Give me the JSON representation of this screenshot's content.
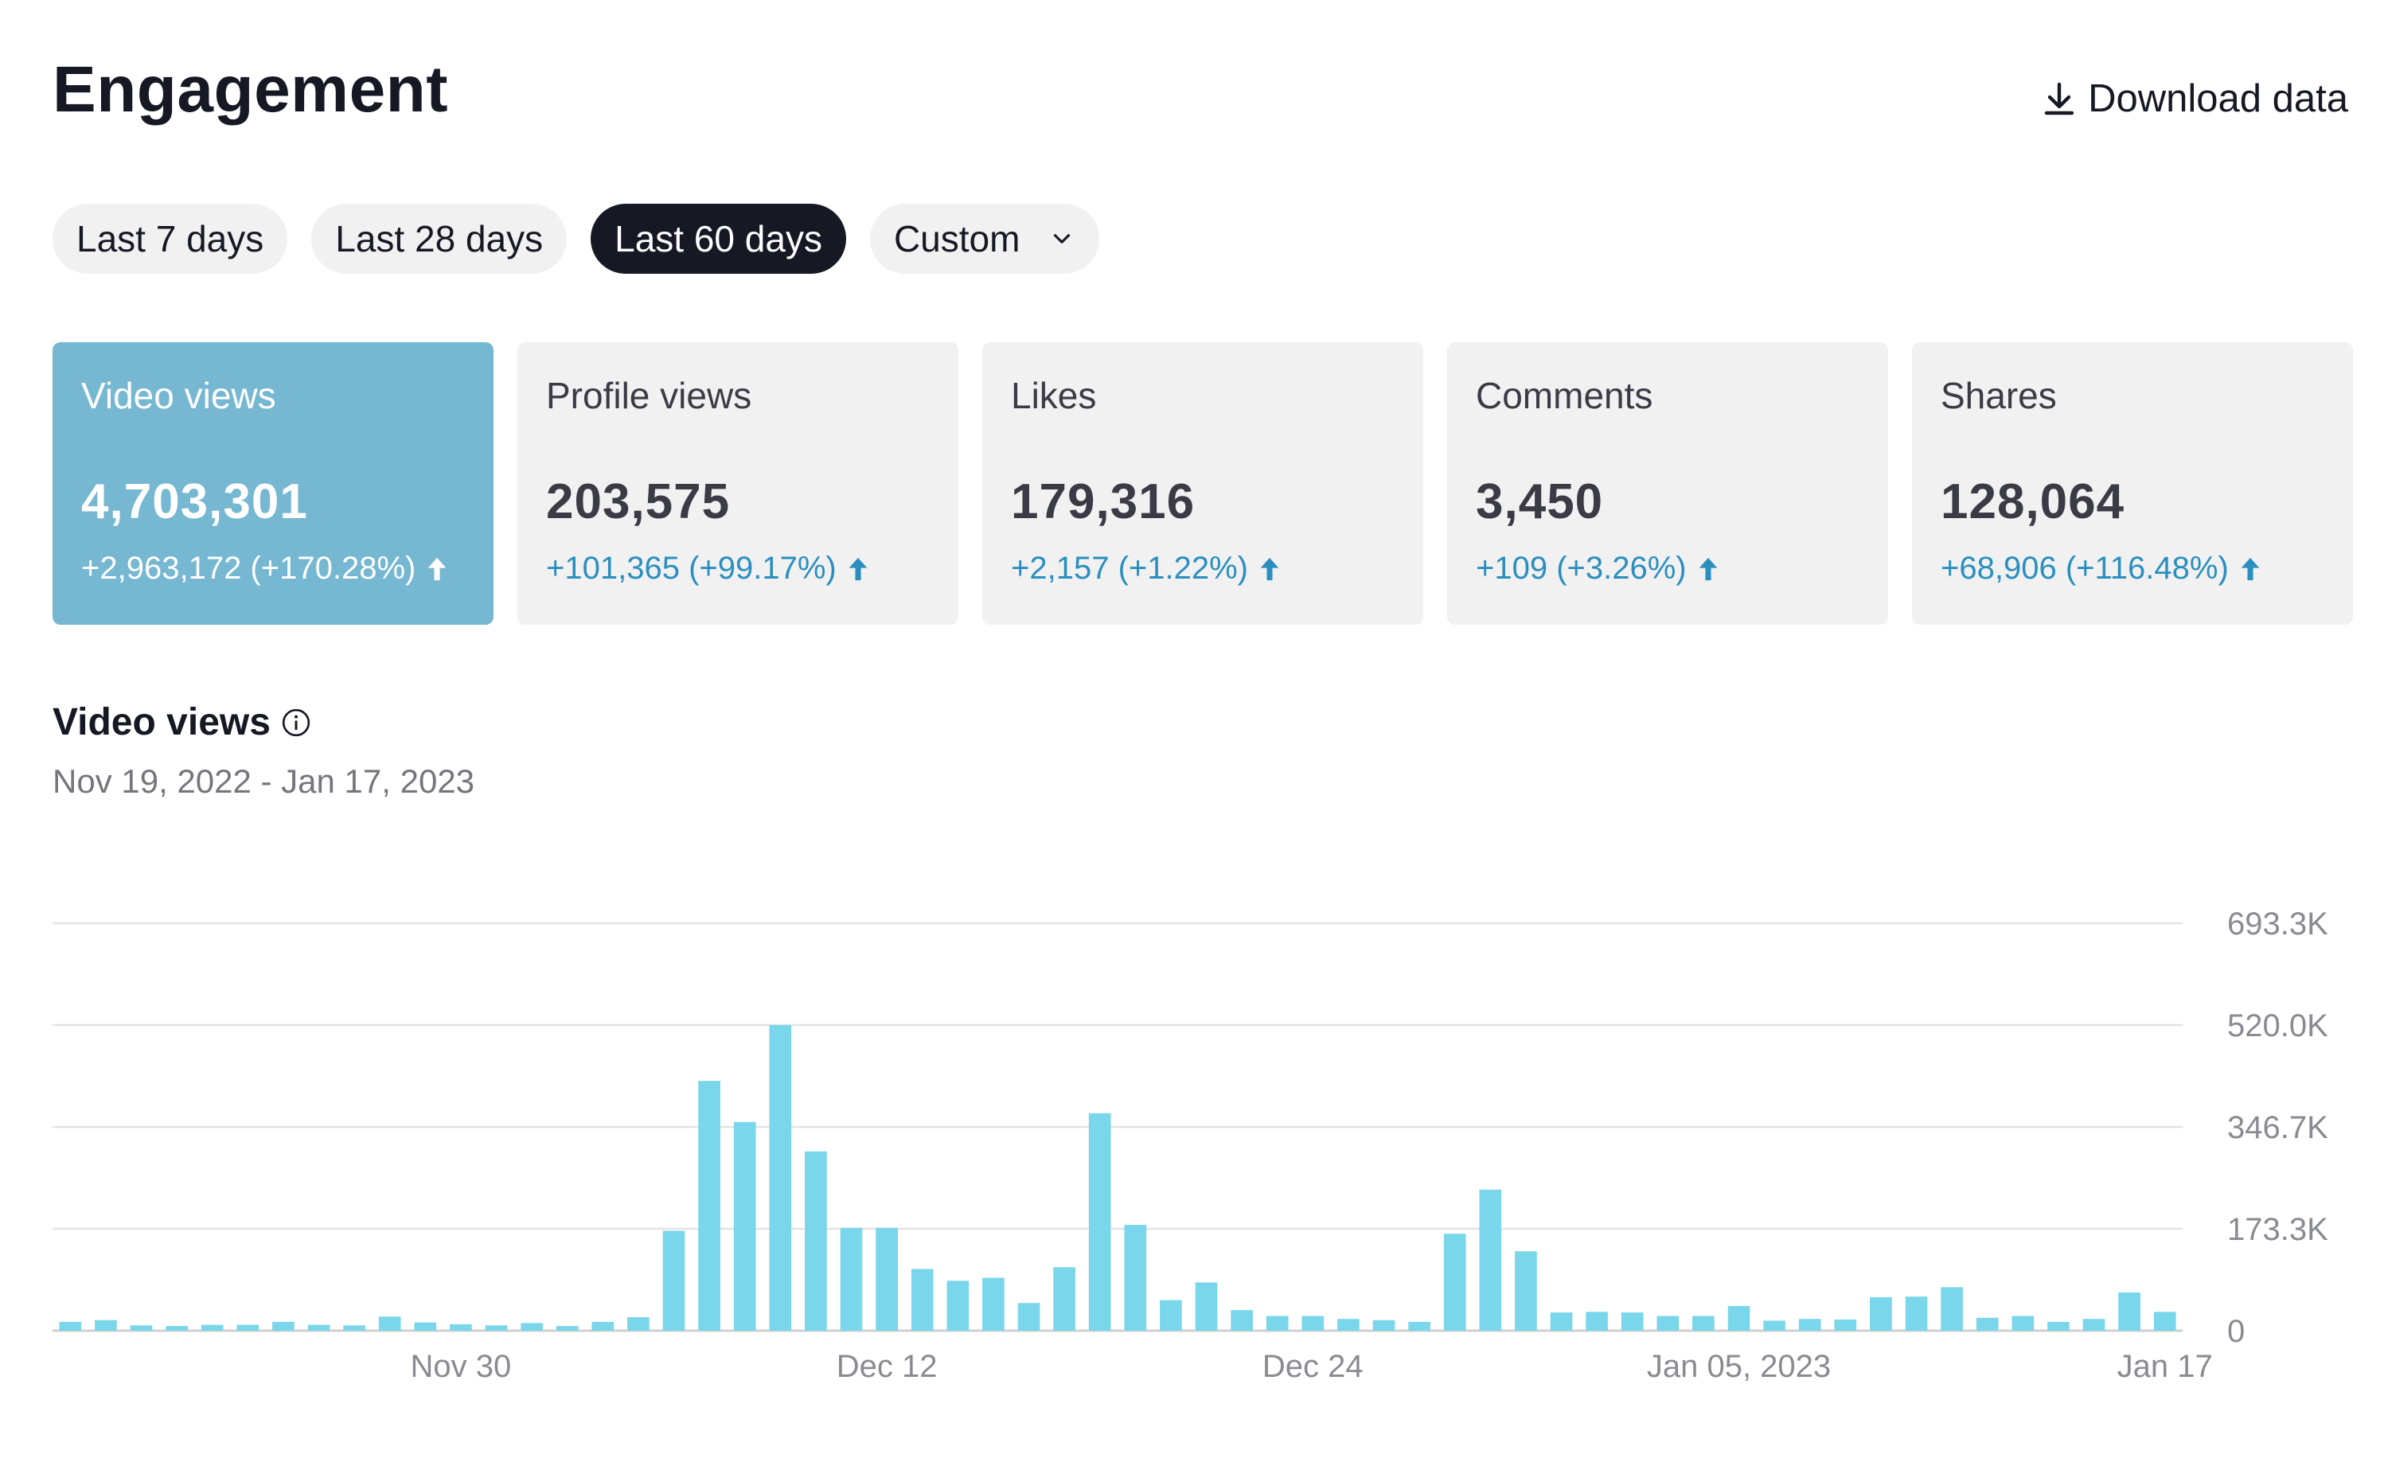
{
  "header": {
    "title": "Engagement",
    "download_label": "Download data"
  },
  "range_tabs": [
    {
      "label": "Last 7 days",
      "active": false
    },
    {
      "label": "Last 28 days",
      "active": false
    },
    {
      "label": "Last 60 days",
      "active": true
    },
    {
      "label": "Custom",
      "active": false
    }
  ],
  "metrics": [
    {
      "label": "Video views",
      "value": "4,703,301",
      "change": "+2,963,172 (+170.28%)",
      "active": true
    },
    {
      "label": "Profile views",
      "value": "203,575",
      "change": "+101,365 (+99.17%)",
      "active": false
    },
    {
      "label": "Likes",
      "value": "179,316",
      "change": "+2,157 (+1.22%)",
      "active": false
    },
    {
      "label": "Comments",
      "value": "3,450",
      "change": "+109 (+3.26%)",
      "active": false
    },
    {
      "label": "Shares",
      "value": "128,064",
      "change": "+68,906 (+116.48%)",
      "active": false
    }
  ],
  "chart_section": {
    "title": "Video views",
    "date_range": "Nov 19, 2022 - Jan 17, 2023"
  },
  "colors": {
    "bar": "#7ad6ea",
    "active_card": "#76b7d1",
    "accent_text": "#2a8fbf",
    "dark": "#161823"
  },
  "chart_data": {
    "type": "bar",
    "title": "Video views",
    "xlabel": "",
    "ylabel": "",
    "ylim": [
      0,
      693300
    ],
    "y_ticks": [
      0,
      173300,
      346700,
      520000,
      693300
    ],
    "y_tick_labels": [
      "0",
      "173.3K",
      "346.7K",
      "520.0K",
      "693.3K"
    ],
    "x_tick_labels": [
      {
        "index": 11,
        "label": "Nov 30"
      },
      {
        "index": 23,
        "label": "Dec 12"
      },
      {
        "index": 35,
        "label": "Dec 24"
      },
      {
        "index": 47,
        "label": "Jan 05, 2023"
      },
      {
        "index": 59,
        "label": "Jan 17"
      }
    ],
    "categories": [
      "Nov 19",
      "Nov 20",
      "Nov 21",
      "Nov 22",
      "Nov 23",
      "Nov 24",
      "Nov 25",
      "Nov 26",
      "Nov 27",
      "Nov 28",
      "Nov 29",
      "Nov 30",
      "Dec 01",
      "Dec 02",
      "Dec 03",
      "Dec 04",
      "Dec 05",
      "Dec 06",
      "Dec 07",
      "Dec 08",
      "Dec 09",
      "Dec 10",
      "Dec 11",
      "Dec 12",
      "Dec 13",
      "Dec 14",
      "Dec 15",
      "Dec 16",
      "Dec 17",
      "Dec 18",
      "Dec 19",
      "Dec 20",
      "Dec 21",
      "Dec 22",
      "Dec 23",
      "Dec 24",
      "Dec 25",
      "Dec 26",
      "Dec 27",
      "Dec 28",
      "Dec 29",
      "Dec 30",
      "Dec 31",
      "Jan 01",
      "Jan 02",
      "Jan 03",
      "Jan 04",
      "Jan 05",
      "Jan 06",
      "Jan 07",
      "Jan 08",
      "Jan 09",
      "Jan 10",
      "Jan 11",
      "Jan 12",
      "Jan 13",
      "Jan 14",
      "Jan 15",
      "Jan 16",
      "Jan 17"
    ],
    "values": [
      15000,
      18000,
      9000,
      8000,
      10000,
      10000,
      15000,
      10000,
      9000,
      24000,
      14000,
      11000,
      9000,
      13000,
      8000,
      15000,
      23000,
      170000,
      425000,
      355000,
      520000,
      305000,
      175000,
      175000,
      105000,
      85000,
      90000,
      47000,
      108000,
      370000,
      180000,
      52000,
      82000,
      35000,
      25000,
      25000,
      20000,
      18000,
      15000,
      165000,
      240000,
      135000,
      31000,
      32000,
      31000,
      25000,
      25000,
      42000,
      17000,
      20000,
      19000,
      57000,
      58000,
      74000,
      22000,
      25000,
      15000,
      20000,
      65000,
      32000
    ]
  }
}
